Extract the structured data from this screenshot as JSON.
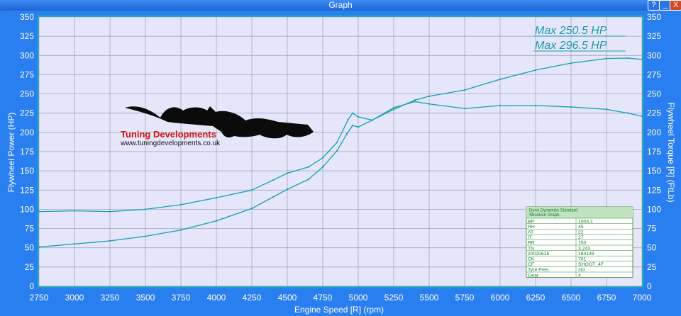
{
  "window": {
    "title": "Graph",
    "help_label": "?",
    "minimize_label": "_",
    "close_label": "X"
  },
  "colors": {
    "plot_background": "#e6e6fb",
    "grid": "#9a9ab5",
    "curve": "#22a3b3",
    "axis_text": "#ffffff",
    "max_label": "#1a9aa8",
    "frame_background": "#2a7ff0"
  },
  "logo": {
    "brand": "Tuning Developments",
    "url": "www.tuningdevelopments.co.uk"
  },
  "max_labels": [
    "Max 250.5 HP",
    "Max 296.5 HP"
  ],
  "info_table": {
    "header": [
      "Dyno Dynamics Standard",
      "Shootout Graph."
    ],
    "rows": [
      [
        "BP",
        "1004.1"
      ],
      [
        "RH",
        "45"
      ],
      [
        "AT",
        "22"
      ],
      [
        "IT",
        "27"
      ],
      [
        "RR",
        "150"
      ],
      [
        "TN",
        "3.243"
      ],
      [
        "20020615",
        "164149"
      ],
      [
        "CK",
        "761"
      ],
      [
        "CF",
        "SHOOT_4F"
      ],
      [
        "Tyre Pres.",
        "std"
      ],
      [
        "Gear",
        "4"
      ]
    ]
  },
  "chart_data": {
    "type": "line",
    "xlabel": "Engine Speed [R] (rpm)",
    "ylabel": "Flywheel Power (HP)",
    "y2label": "Flywheel Torque [R] (FtLb)",
    "xlim": [
      2750,
      7000
    ],
    "ylim": [
      0,
      350
    ],
    "y2lim": [
      0,
      350
    ],
    "x_ticks": [
      "2750",
      "3000",
      "3250",
      "3500",
      "3750",
      "4000",
      "4250",
      "4500",
      "4750",
      "5000",
      "5250",
      "5500",
      "5750",
      "6000",
      "6250",
      "6500",
      "6750",
      "7000"
    ],
    "y_ticks": [
      "0",
      "25",
      "50",
      "75",
      "100",
      "125",
      "150",
      "175",
      "200",
      "225",
      "250",
      "275",
      "300",
      "325",
      "350"
    ],
    "grid": true,
    "series": [
      {
        "role": "power",
        "x": [
          2750,
          3000,
          3250,
          3500,
          3750,
          4000,
          4250,
          4400,
          4500,
          4650,
          4750,
          4850,
          4920,
          4960,
          5000,
          5100,
          5250,
          5400,
          5500,
          5750,
          6000,
          6250,
          6500,
          6750,
          6900,
          7000
        ],
        "y": [
          51,
          55,
          59,
          65,
          73,
          85,
          101,
          116,
          126,
          139,
          155,
          176,
          198,
          209,
          207,
          216,
          230,
          242,
          247,
          255,
          269,
          281,
          290,
          296,
          296.5,
          295
        ]
      },
      {
        "role": "torque",
        "x": [
          2750,
          3000,
          3250,
          3500,
          3750,
          4000,
          4250,
          4400,
          4500,
          4650,
          4750,
          4850,
          4930,
          4960,
          5000,
          5100,
          5250,
          5400,
          5500,
          5750,
          6000,
          6250,
          6500,
          6750,
          6900,
          7000
        ],
        "y": [
          97,
          98,
          97,
          100,
          106,
          115,
          125,
          138,
          147,
          155,
          167,
          187,
          217,
          225,
          220,
          216,
          232,
          240,
          237,
          231,
          235,
          235,
          233,
          230,
          225,
          221
        ]
      }
    ]
  }
}
